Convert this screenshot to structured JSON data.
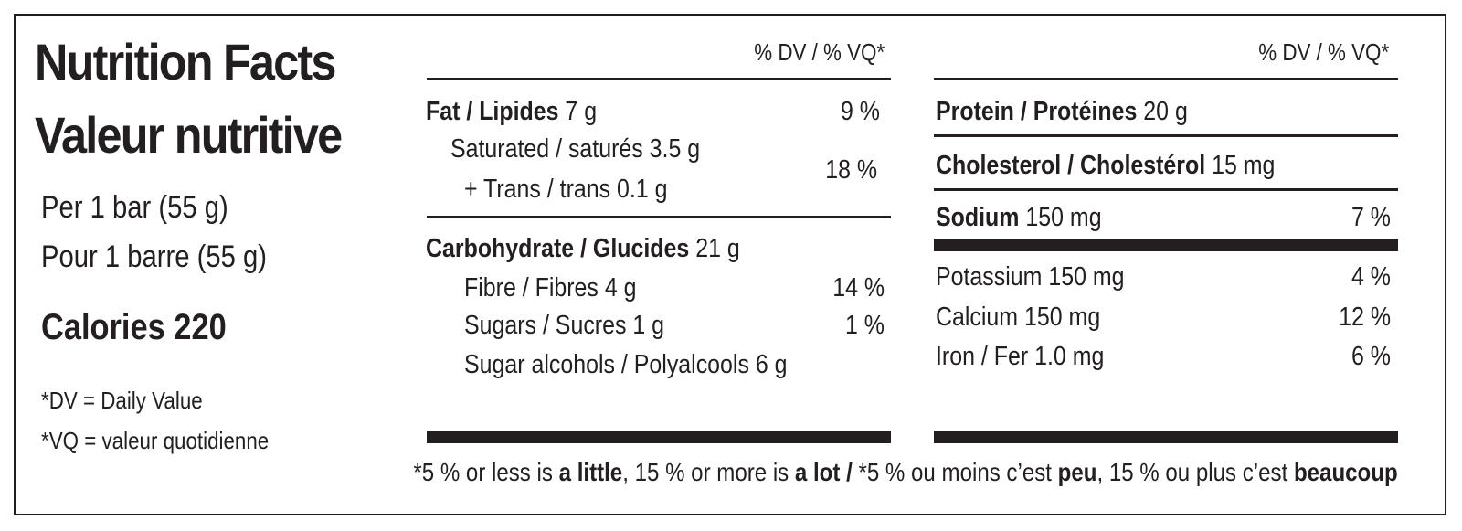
{
  "label": {
    "title_en": "Nutrition Facts",
    "title_fr": "Valeur nutritive",
    "serving_en": "Per 1 bar (55 g)",
    "serving_fr": "Pour 1 barre (55 g)",
    "calories": "Calories 220",
    "note_dv": "*DV = Daily Value",
    "note_vq": "*VQ = valeur quotidienne"
  },
  "left_table": {
    "header": "% DV / % VQ*",
    "fat": {
      "name": "Fat / Lipides",
      "amount": "7 g",
      "dv": "9 %"
    },
    "saturated": {
      "name": "Saturated / saturés 3.5 g"
    },
    "trans": {
      "name": "+ Trans / trans 0.1 g"
    },
    "sat_trans_dv": "18 %",
    "carbohydrate": {
      "name": "Carbohydrate / Glucides",
      "amount": "21 g"
    },
    "fibre": {
      "name": "Fibre / Fibres 4 g",
      "dv": "14 %"
    },
    "sugars": {
      "name": "Sugars / Sucres 1 g",
      "dv": "1 %"
    },
    "sugar_alcohols": {
      "name": "Sugar alcohols / Polyalcools  6 g"
    }
  },
  "right_table": {
    "header": "% DV / % VQ*",
    "protein": {
      "name": "Protein / Protéines",
      "amount": "20 g"
    },
    "cholesterol": {
      "name": "Cholesterol / Cholestérol",
      "amount": "15 mg"
    },
    "sodium": {
      "name": "Sodium",
      "amount": "150 mg",
      "dv": "7 %"
    },
    "potassium": {
      "name": "Potassium 150 mg",
      "dv": "4 %"
    },
    "calcium": {
      "name": "Calcium 150 mg",
      "dv": "12 %"
    },
    "iron": {
      "name": "Iron / Fer 1.0 mg",
      "dv": "6 %"
    }
  },
  "footnote": {
    "p1": "*5 % or less is ",
    "b1": "a little",
    "p2": ", 15 % or more is ",
    "b2": "a lot / ",
    "p3": "*5 % ou moins c’est ",
    "b3": "peu",
    "p4": ", 15 % ou plus c’est ",
    "b4": "beaucoup"
  }
}
